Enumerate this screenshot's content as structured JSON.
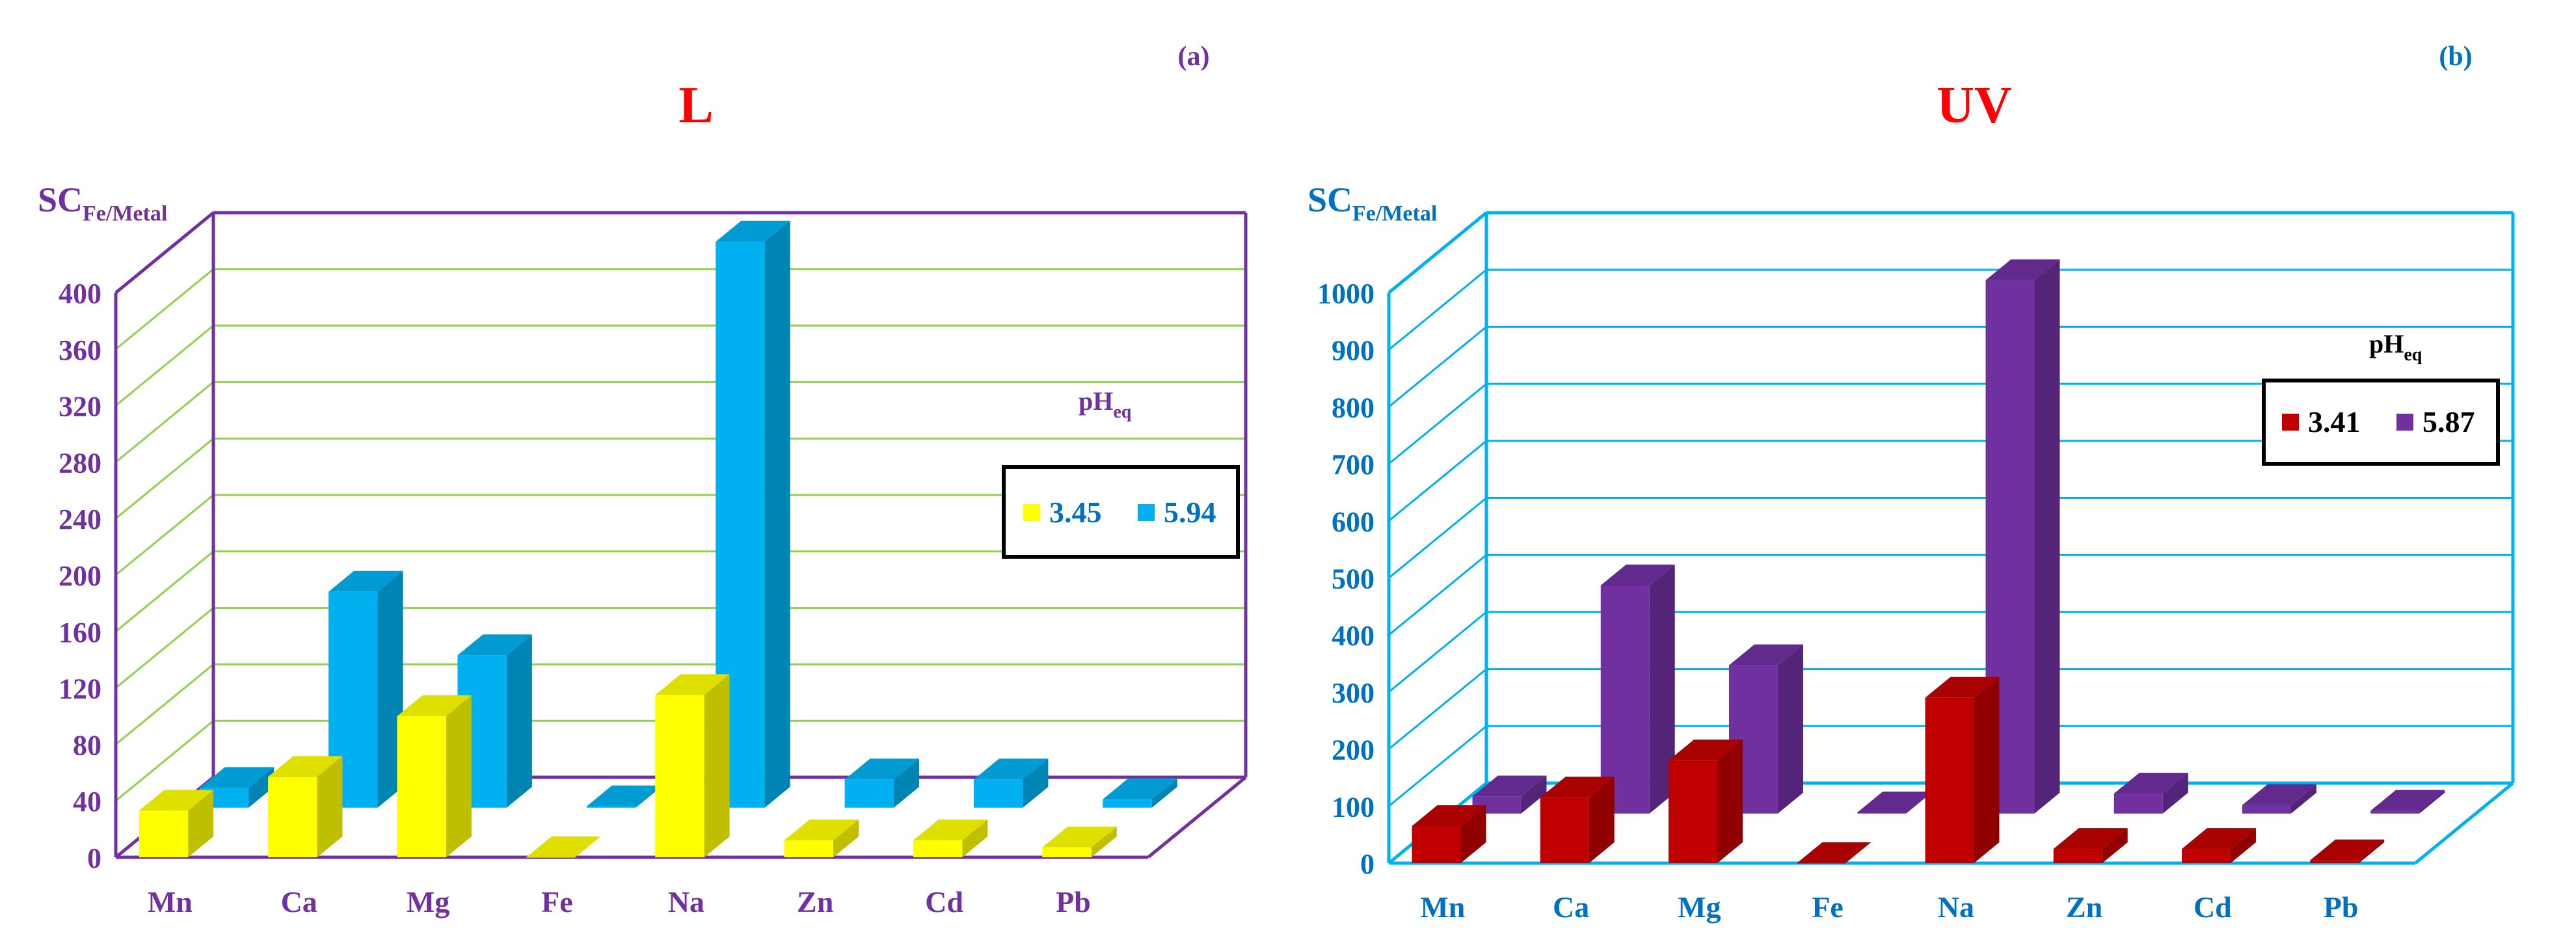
{
  "chart_data": [
    {
      "type": "bar",
      "panel_label": "(a)",
      "title": "L",
      "ylabel_main": "SC",
      "ylabel_sub": "Fe/Metal",
      "xlabel": "",
      "categories": [
        "Mn",
        "Ca",
        "Mg",
        "Fe",
        "Na",
        "Zn",
        "Cd",
        "Pb"
      ],
      "ylim": [
        0,
        400
      ],
      "yticks": [
        0,
        40,
        80,
        120,
        160,
        200,
        240,
        280,
        320,
        360,
        400
      ],
      "legend_title_main": "pH",
      "legend_title_sub": "eq",
      "series": [
        {
          "name": "3.45",
          "values": [
            33,
            57,
            100,
            0,
            115,
            12,
            12,
            7
          ]
        },
        {
          "name": "5.94",
          "values": [
            14,
            153,
            108,
            1,
            401,
            20,
            20,
            6
          ]
        }
      ],
      "colors": {
        "axis": "#7030A0",
        "grid": "#92D050",
        "title": "#FF0000",
        "label": "#7030A0",
        "legend_text": "#0070C0",
        "s1": "#FFFF00",
        "s2": "#00B0F0"
      }
    },
    {
      "type": "bar",
      "panel_label": "(b)",
      "title": "UV",
      "ylabel_main": "SC",
      "ylabel_sub": "Fe/Metal",
      "xlabel": "",
      "categories": [
        "Mn",
        "Ca",
        "Mg",
        "Fe",
        "Na",
        "Zn",
        "Cd",
        "Pb"
      ],
      "ylim": [
        0,
        1000
      ],
      "yticks": [
        0,
        100,
        200,
        300,
        400,
        500,
        600,
        700,
        800,
        900,
        1000
      ],
      "legend_title_main": "pH",
      "legend_title_sub": "eq",
      "series": [
        {
          "name": "3.41",
          "values": [
            65,
            115,
            180,
            0,
            290,
            25,
            25,
            5
          ]
        },
        {
          "name": "5.87",
          "values": [
            30,
            400,
            260,
            2,
            935,
            35,
            15,
            5
          ]
        }
      ],
      "colors": {
        "axis": "#00B0F0",
        "grid": "#00B0F0",
        "title": "#FF0000",
        "label": "#0070C0",
        "legend_text": "#000000",
        "s1": "#C00000",
        "s2": "#7030A0"
      }
    }
  ]
}
